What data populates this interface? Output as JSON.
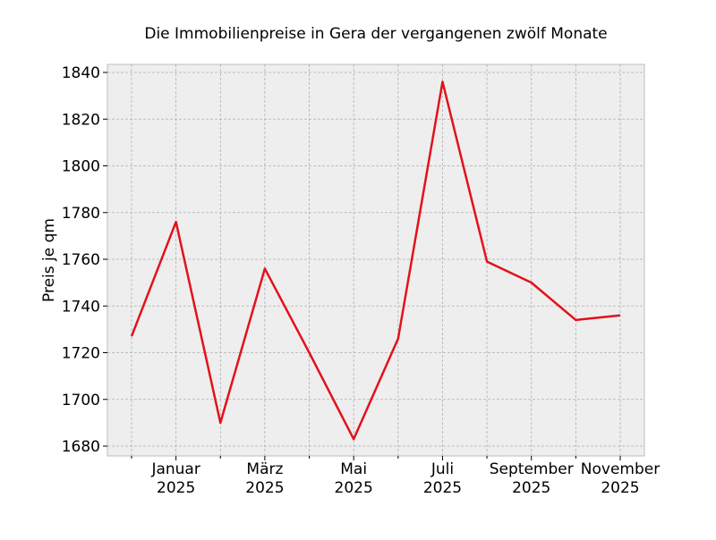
{
  "chart_data": {
    "type": "line",
    "title": "Die Immobilienpreise in Gera der vergangenen zwölf Monate",
    "xlabel": "",
    "ylabel": "Preis je qm",
    "x": [
      "2024-12",
      "2025-01",
      "2025-02",
      "2025-03",
      "2025-04",
      "2025-05",
      "2025-06",
      "2025-07",
      "2025-08",
      "2025-09",
      "2025-10",
      "2025-11"
    ],
    "x_tick_labels": [
      {
        "index": 1,
        "line1": "Januar",
        "line2": "2025"
      },
      {
        "index": 3,
        "line1": "März",
        "line2": "2025"
      },
      {
        "index": 5,
        "line1": "Mai",
        "line2": "2025"
      },
      {
        "index": 7,
        "line1": "Juli",
        "line2": "2025"
      },
      {
        "index": 9,
        "line1": "September",
        "line2": "2025"
      },
      {
        "index": 11,
        "line1": "November",
        "line2": "2025"
      }
    ],
    "series": [
      {
        "values": [
          1727,
          1776,
          1690,
          1756,
          1720,
          1683,
          1726,
          1836,
          1759,
          1750,
          1734,
          1736
        ],
        "color": "#e3111b"
      }
    ],
    "ylim": [
      1676,
      1843
    ],
    "yticks": [
      1680,
      1700,
      1720,
      1740,
      1760,
      1780,
      1800,
      1820,
      1840
    ],
    "grid": true,
    "background": "#eeeeee"
  }
}
